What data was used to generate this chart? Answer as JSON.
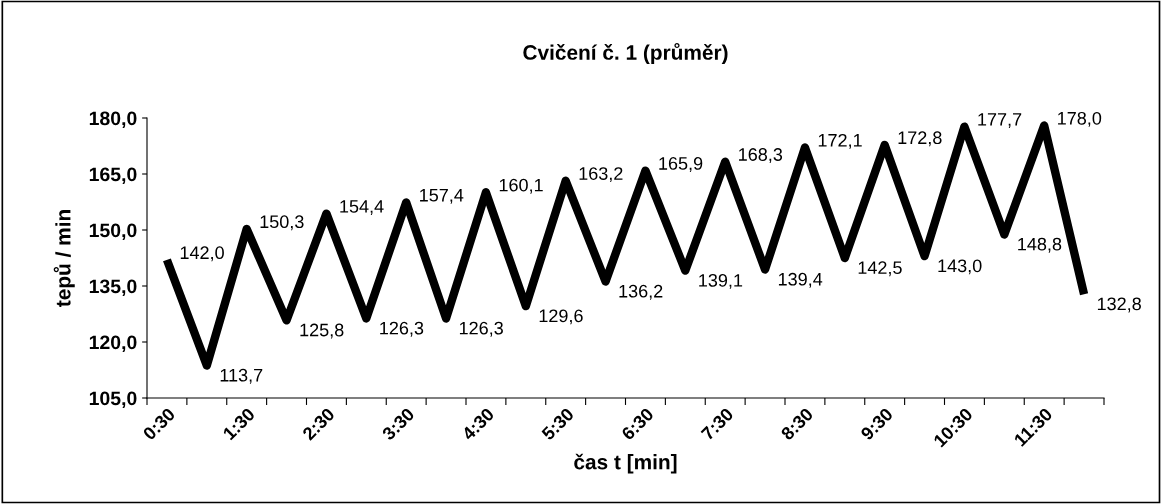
{
  "chart_data": {
    "type": "line",
    "title": "Cvičení č. 1 (průměr)",
    "xlabel": "čas t [min]",
    "ylabel": "tepů / min",
    "categories": [
      "0:30",
      null,
      "1:30",
      null,
      "2:30",
      null,
      "3:30",
      null,
      "4:30",
      null,
      "5:30",
      null,
      "6:30",
      null,
      "7:30",
      null,
      "8:30",
      null,
      "9:30",
      null,
      "10:30",
      null,
      "11:30",
      null
    ],
    "series": [
      {
        "color": "#000000",
        "values": [
          142.0,
          113.7,
          150.3,
          125.8,
          154.4,
          126.3,
          157.4,
          126.3,
          160.1,
          129.6,
          163.2,
          136.2,
          165.9,
          139.1,
          168.3,
          139.4,
          172.1,
          142.5,
          172.8,
          143.0,
          177.7,
          148.8,
          178.0,
          132.8
        ]
      }
    ],
    "value_labels": [
      "142,0",
      "113,7",
      "150,3",
      "125,8",
      "154,4",
      "126,3",
      "157,4",
      "126,3",
      "160,1",
      "129,6",
      "163,2",
      "136,2",
      "165,9",
      "139,1",
      "168,3",
      "139,4",
      "172,1",
      "142,5",
      "172,8",
      "143,0",
      "177,7",
      "148,8",
      "178,0",
      "132,8"
    ],
    "ylim": [
      105,
      180
    ],
    "yticks": [
      {
        "value": 105,
        "label": "105,0"
      },
      {
        "value": 120,
        "label": "120,0"
      },
      {
        "value": 135,
        "label": "135,0"
      },
      {
        "value": 150,
        "label": "150,0"
      },
      {
        "value": 165,
        "label": "165,0"
      },
      {
        "value": 180,
        "label": "180,0"
      }
    ],
    "grid": false,
    "legend": false,
    "marker": "none",
    "line_style": "solid"
  }
}
